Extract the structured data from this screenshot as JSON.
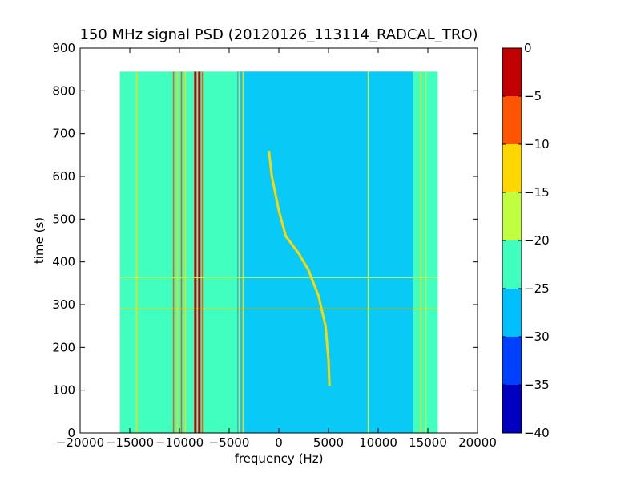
{
  "chart_data": {
    "type": "heatmap",
    "title": "150 MHz signal PSD (20120126_113114_RADCAL_TRO)",
    "xlabel": "frequency (Hz)",
    "ylabel": "time (s)",
    "xlim": [
      -20000,
      20000
    ],
    "ylim": [
      0,
      900
    ],
    "xticks": [
      -20000,
      -15000,
      -10000,
      -5000,
      0,
      5000,
      10000,
      15000,
      20000
    ],
    "yticks": [
      0,
      100,
      200,
      300,
      400,
      500,
      600,
      700,
      800,
      900
    ],
    "data_extent": {
      "x": [
        -16000,
        16000
      ],
      "y": [
        0,
        845
      ]
    },
    "colorbar": {
      "levels": [
        -40,
        -35,
        -30,
        -25,
        -20,
        -15,
        -10,
        -5,
        0
      ],
      "colors": [
        "#0000bf",
        "#0040ff",
        "#00bfff",
        "#40ffbf",
        "#bfff40",
        "#ffd700",
        "#ff5500",
        "#c00000"
      ],
      "tick_labels": [
        "0",
        "−5",
        "−10",
        "−15",
        "−20",
        "−25",
        "−30",
        "−35",
        "−40"
      ]
    },
    "background_level": -25,
    "noise_region": {
      "x": [
        -4200,
        13500
      ],
      "level": -30
    },
    "vertical_features": [
      {
        "x": -14300,
        "level": -15
      },
      {
        "x": -10600,
        "level": -10
      },
      {
        "x": -10200,
        "level": -15
      },
      {
        "x": -9800,
        "level": -10
      },
      {
        "x": -9400,
        "level": -15
      },
      {
        "x": -8400,
        "level": -5
      },
      {
        "x": -8000,
        "level": 0
      },
      {
        "x": -7700,
        "level": -10
      },
      {
        "x": -4000,
        "level": -15
      },
      {
        "x": -3600,
        "level": -15
      },
      {
        "x": 9000,
        "level": -20
      },
      {
        "x": 14300,
        "level": -15
      },
      {
        "x": 14800,
        "level": -20
      }
    ],
    "horizontal_features": [
      {
        "y": 290,
        "level": -15
      },
      {
        "y": 363,
        "level": -20
      }
    ],
    "drift_track": {
      "level": -15,
      "points": [
        [
          -1000,
          660
        ],
        [
          -700,
          600
        ],
        [
          0,
          520
        ],
        [
          700,
          460
        ],
        [
          2000,
          420
        ],
        [
          3000,
          380
        ],
        [
          4000,
          320
        ],
        [
          4700,
          250
        ],
        [
          5000,
          170
        ],
        [
          5100,
          110
        ]
      ]
    }
  }
}
